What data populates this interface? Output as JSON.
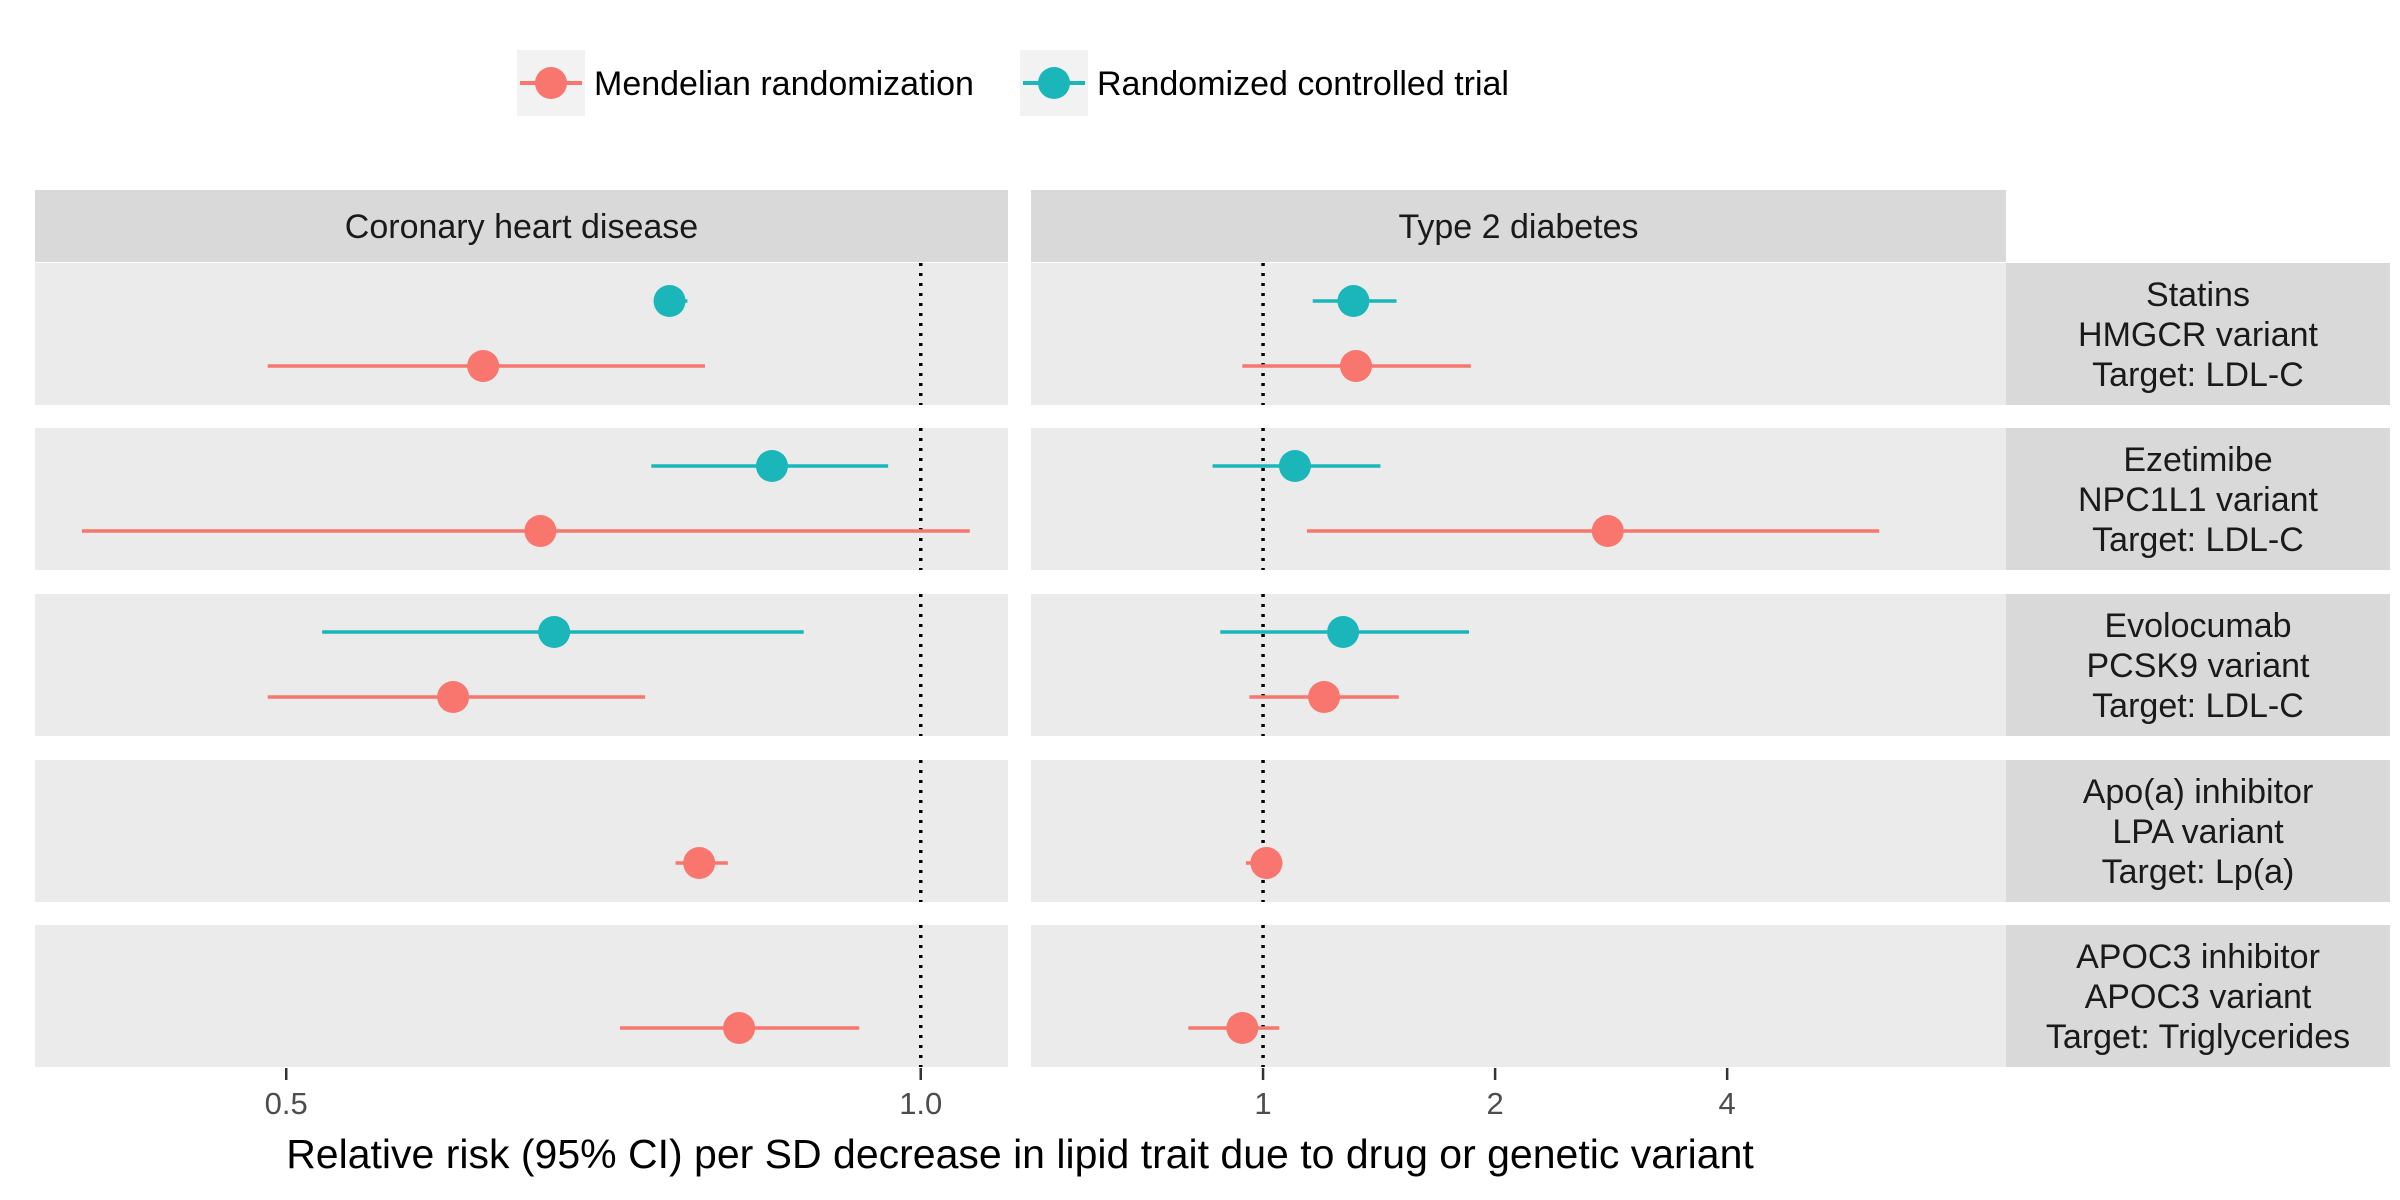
{
  "chart_data": {
    "type": "forest",
    "scale": "log",
    "legend": {
      "position": "top",
      "entries": [
        {
          "key": "mr",
          "label": "Mendelian randomization",
          "color": "#F8766D"
        },
        {
          "key": "rct",
          "label": "Randomized controlled trial",
          "color": "#1BB6BA"
        }
      ]
    },
    "xlabel": "Relative risk (95% CI) per SD decrease in lipid trait due to drug or genetic variant",
    "reference_line": 1,
    "panels": [
      {
        "key": "chd",
        "title": "Coronary heart disease",
        "xlim": [
          0.38,
          1.1
        ],
        "ticks": [
          {
            "value": 0.5,
            "label": "0.5"
          },
          {
            "value": 1.0,
            "label": "1.0"
          }
        ]
      },
      {
        "key": "t2d",
        "title": "Type 2 diabetes",
        "xlim": [
          0.5,
          9.2
        ],
        "ticks": [
          {
            "value": 1,
            "label": "1"
          },
          {
            "value": 2,
            "label": "2"
          },
          {
            "value": 4,
            "label": "4"
          }
        ]
      }
    ],
    "rows": [
      {
        "label_lines": [
          "Statins",
          "HMGCR variant",
          "Target: LDL-C"
        ],
        "chd": {
          "rct": {
            "est": 0.76,
            "lo": 0.75,
            "hi": 0.775
          },
          "mr": {
            "est": 0.62,
            "lo": 0.49,
            "hi": 0.79
          }
        },
        "t2d": {
          "rct": {
            "est": 1.31,
            "lo": 1.16,
            "hi": 1.49
          },
          "mr": {
            "est": 1.32,
            "lo": 0.94,
            "hi": 1.86
          }
        }
      },
      {
        "label_lines": [
          "Ezetimibe",
          "NPC1L1 variant",
          "Target: LDL-C"
        ],
        "chd": {
          "rct": {
            "est": 0.85,
            "lo": 0.745,
            "hi": 0.965
          },
          "mr": {
            "est": 0.66,
            "lo": 0.4,
            "hi": 1.055
          }
        },
        "t2d": {
          "rct": {
            "est": 1.1,
            "lo": 0.86,
            "hi": 1.42
          },
          "mr": {
            "est": 2.8,
            "lo": 1.14,
            "hi": 6.3
          }
        }
      },
      {
        "label_lines": [
          "Evolocumab",
          "PCSK9 variant",
          "Target: LDL-C"
        ],
        "chd": {
          "rct": {
            "est": 0.67,
            "lo": 0.52,
            "hi": 0.88
          },
          "mr": {
            "est": 0.6,
            "lo": 0.49,
            "hi": 0.74
          }
        },
        "t2d": {
          "rct": {
            "est": 1.27,
            "lo": 0.88,
            "hi": 1.85
          },
          "mr": {
            "est": 1.2,
            "lo": 0.96,
            "hi": 1.5
          }
        }
      },
      {
        "label_lines": [
          "Apo(a) inhibitor",
          "LPA variant",
          "Target: Lp(a)"
        ],
        "chd": {
          "mr": {
            "est": 0.785,
            "lo": 0.765,
            "hi": 0.81
          }
        },
        "t2d": {
          "mr": {
            "est": 1.01,
            "lo": 0.95,
            "hi": 1.06
          }
        }
      },
      {
        "label_lines": [
          "APOC3 inhibitor",
          "APOC3 variant",
          "Target: Triglycerides"
        ],
        "chd": {
          "mr": {
            "est": 0.82,
            "lo": 0.72,
            "hi": 0.935
          }
        },
        "t2d": {
          "mr": {
            "est": 0.94,
            "lo": 0.8,
            "hi": 1.05
          }
        }
      }
    ]
  }
}
